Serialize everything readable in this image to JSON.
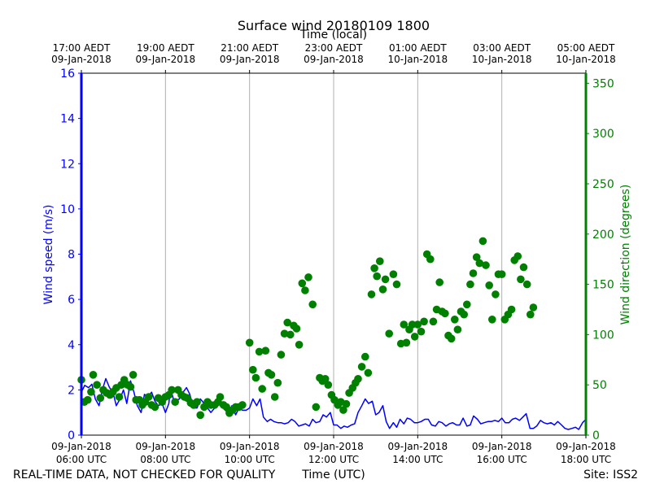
{
  "chart_data": {
    "type": "line+scatter",
    "title": "Surface wind 20180109 1800",
    "top_xlabel": "Time (local)",
    "xlabel": "Time (UTC)",
    "ylabel_left": "Wind speed (m/s)",
    "ylabel_right": "Wind direction (degrees)",
    "footer_left": "REAL-TIME DATA, NOT CHECKED FOR QUALITY",
    "footer_right": "Site: ISS2",
    "x_range_hours_utc": [
      6.0,
      18.0
    ],
    "ylim_left": [
      0,
      16
    ],
    "ylim_right": [
      0,
      360
    ],
    "left_ticks": [
      0,
      2,
      4,
      6,
      8,
      10,
      12,
      14,
      16
    ],
    "right_ticks": [
      0,
      50,
      100,
      150,
      200,
      250,
      300,
      350
    ],
    "bottom_ticks": [
      {
        "h": 6,
        "line1": "09-Jan-2018",
        "line2": "06:00 UTC"
      },
      {
        "h": 8,
        "line1": "09-Jan-2018",
        "line2": "08:00 UTC"
      },
      {
        "h": 10,
        "line1": "09-Jan-2018",
        "line2": "10:00 UTC"
      },
      {
        "h": 12,
        "line1": "09-Jan-2018",
        "line2": "12:00 UTC"
      },
      {
        "h": 14,
        "line1": "09-Jan-2018",
        "line2": "14:00 UTC"
      },
      {
        "h": 16,
        "line1": "09-Jan-2018",
        "line2": "16:00 UTC"
      },
      {
        "h": 18,
        "line1": "09-Jan-2018",
        "line2": "18:00 UTC"
      }
    ],
    "top_ticks": [
      {
        "h": 6,
        "line1": "17:00 AEDT",
        "line2": "09-Jan-2018"
      },
      {
        "h": 8,
        "line1": "19:00 AEDT",
        "line2": "09-Jan-2018"
      },
      {
        "h": 10,
        "line1": "21:00 AEDT",
        "line2": "09-Jan-2018"
      },
      {
        "h": 12,
        "line1": "23:00 AEDT",
        "line2": "09-Jan-2018"
      },
      {
        "h": 14,
        "line1": "01:00 AEDT",
        "line2": "10-Jan-2018"
      },
      {
        "h": 16,
        "line1": "03:00 AEDT",
        "line2": "10-Jan-2018"
      },
      {
        "h": 18,
        "line1": "05:00 AEDT",
        "line2": "10-Jan-2018"
      }
    ],
    "speed_color": "#0000ff",
    "direction_color": "#008000",
    "grid_color": "#b0b0b0",
    "wind_speed": [
      [
        6.0,
        1.9
      ],
      [
        6.08,
        2.2
      ],
      [
        6.17,
        2.1
      ],
      [
        6.25,
        2.25
      ],
      [
        6.33,
        1.6
      ],
      [
        6.42,
        1.3
      ],
      [
        6.5,
        2.0
      ],
      [
        6.58,
        2.5
      ],
      [
        6.67,
        2.1
      ],
      [
        6.75,
        1.9
      ],
      [
        6.83,
        1.3
      ],
      [
        6.92,
        1.6
      ],
      [
        7.0,
        2.0
      ],
      [
        7.08,
        1.4
      ],
      [
        7.17,
        2.4
      ],
      [
        7.25,
        1.9
      ],
      [
        7.33,
        1.3
      ],
      [
        7.42,
        1.0
      ],
      [
        7.5,
        1.8
      ],
      [
        7.58,
        1.7
      ],
      [
        7.67,
        1.9
      ],
      [
        7.75,
        1.5
      ],
      [
        7.83,
        1.3
      ],
      [
        7.92,
        1.4
      ],
      [
        8.0,
        1.0
      ],
      [
        8.08,
        1.4
      ],
      [
        8.12,
        2.1
      ],
      [
        8.2,
        1.5
      ],
      [
        8.33,
        1.6
      ],
      [
        8.42,
        1.9
      ],
      [
        8.5,
        2.1
      ],
      [
        8.58,
        1.8
      ],
      [
        8.67,
        1.2
      ],
      [
        8.75,
        1.2
      ],
      [
        8.83,
        1.6
      ],
      [
        8.92,
        1.4
      ],
      [
        9.0,
        1.2
      ],
      [
        9.08,
        1.0
      ],
      [
        9.17,
        1.2
      ],
      [
        9.25,
        1.3
      ],
      [
        9.33,
        1.4
      ],
      [
        9.42,
        1.1
      ],
      [
        9.5,
        1.0
      ],
      [
        9.58,
        1.3
      ],
      [
        9.67,
        0.9
      ],
      [
        9.75,
        1.2
      ],
      [
        9.83,
        1.1
      ],
      [
        9.92,
        1.1
      ],
      [
        10.0,
        1.2
      ],
      [
        10.08,
        1.6
      ],
      [
        10.17,
        1.3
      ],
      [
        10.25,
        1.6
      ],
      [
        10.33,
        0.8
      ],
      [
        10.42,
        0.6
      ],
      [
        10.5,
        0.7
      ],
      [
        10.58,
        0.6
      ],
      [
        10.67,
        0.55
      ],
      [
        10.75,
        0.55
      ],
      [
        10.83,
        0.5
      ],
      [
        10.92,
        0.55
      ],
      [
        11.0,
        0.7
      ],
      [
        11.08,
        0.6
      ],
      [
        11.17,
        0.4
      ],
      [
        11.25,
        0.45
      ],
      [
        11.33,
        0.5
      ],
      [
        11.42,
        0.4
      ],
      [
        11.5,
        0.7
      ],
      [
        11.58,
        0.55
      ],
      [
        11.67,
        0.6
      ],
      [
        11.75,
        0.9
      ],
      [
        11.83,
        0.8
      ],
      [
        11.92,
        1.0
      ],
      [
        12.0,
        0.45
      ],
      [
        12.08,
        0.45
      ],
      [
        12.17,
        0.3
      ],
      [
        12.25,
        0.4
      ],
      [
        12.33,
        0.35
      ],
      [
        12.42,
        0.45
      ],
      [
        12.5,
        0.5
      ],
      [
        12.58,
        1.0
      ],
      [
        12.67,
        1.3
      ],
      [
        12.75,
        1.6
      ],
      [
        12.83,
        1.4
      ],
      [
        12.92,
        1.5
      ],
      [
        13.0,
        0.9
      ],
      [
        13.08,
        1.0
      ],
      [
        13.17,
        1.3
      ],
      [
        13.25,
        0.6
      ],
      [
        13.33,
        0.3
      ],
      [
        13.42,
        0.55
      ],
      [
        13.5,
        0.35
      ],
      [
        13.58,
        0.7
      ],
      [
        13.67,
        0.5
      ],
      [
        13.75,
        0.75
      ],
      [
        13.83,
        0.7
      ],
      [
        13.92,
        0.55
      ],
      [
        14.0,
        0.55
      ],
      [
        14.08,
        0.6
      ],
      [
        14.17,
        0.7
      ],
      [
        14.25,
        0.7
      ],
      [
        14.33,
        0.45
      ],
      [
        14.42,
        0.4
      ],
      [
        14.5,
        0.6
      ],
      [
        14.58,
        0.55
      ],
      [
        14.67,
        0.4
      ],
      [
        14.75,
        0.5
      ],
      [
        14.83,
        0.55
      ],
      [
        14.92,
        0.45
      ],
      [
        15.0,
        0.45
      ],
      [
        15.08,
        0.75
      ],
      [
        15.17,
        0.4
      ],
      [
        15.25,
        0.45
      ],
      [
        15.33,
        0.85
      ],
      [
        15.42,
        0.7
      ],
      [
        15.5,
        0.5
      ],
      [
        15.58,
        0.55
      ],
      [
        15.67,
        0.6
      ],
      [
        15.75,
        0.6
      ],
      [
        15.83,
        0.65
      ],
      [
        15.92,
        0.6
      ],
      [
        16.0,
        0.75
      ],
      [
        16.08,
        0.55
      ],
      [
        16.17,
        0.55
      ],
      [
        16.25,
        0.7
      ],
      [
        16.33,
        0.75
      ],
      [
        16.42,
        0.65
      ],
      [
        16.5,
        0.8
      ],
      [
        16.58,
        0.95
      ],
      [
        16.67,
        0.3
      ],
      [
        16.75,
        0.3
      ],
      [
        16.83,
        0.4
      ],
      [
        16.92,
        0.65
      ],
      [
        17.0,
        0.55
      ],
      [
        17.08,
        0.5
      ],
      [
        17.17,
        0.55
      ],
      [
        17.25,
        0.45
      ],
      [
        17.33,
        0.6
      ],
      [
        17.42,
        0.45
      ],
      [
        17.5,
        0.3
      ],
      [
        17.58,
        0.25
      ],
      [
        17.67,
        0.3
      ],
      [
        17.75,
        0.35
      ],
      [
        17.83,
        0.25
      ],
      [
        17.92,
        0.55
      ],
      [
        18.0,
        0.7
      ]
    ],
    "wind_direction": [
      [
        6.0,
        55
      ],
      [
        6.07,
        33
      ],
      [
        6.15,
        35
      ],
      [
        6.23,
        43
      ],
      [
        6.28,
        60
      ],
      [
        6.37,
        50
      ],
      [
        6.45,
        37
      ],
      [
        6.52,
        45
      ],
      [
        6.6,
        42
      ],
      [
        6.68,
        40
      ],
      [
        6.75,
        43
      ],
      [
        6.83,
        47
      ],
      [
        6.9,
        38
      ],
      [
        6.95,
        50
      ],
      [
        7.02,
        55
      ],
      [
        7.1,
        50
      ],
      [
        7.17,
        48
      ],
      [
        7.23,
        60
      ],
      [
        7.3,
        35
      ],
      [
        7.38,
        35
      ],
      [
        7.45,
        30
      ],
      [
        7.52,
        33
      ],
      [
        7.6,
        38
      ],
      [
        7.67,
        30
      ],
      [
        7.75,
        28
      ],
      [
        7.83,
        37
      ],
      [
        7.92,
        33
      ],
      [
        8.0,
        38
      ],
      [
        8.08,
        40
      ],
      [
        8.15,
        45
      ],
      [
        8.23,
        33
      ],
      [
        8.3,
        45
      ],
      [
        8.38,
        40
      ],
      [
        8.45,
        38
      ],
      [
        8.52,
        37
      ],
      [
        8.6,
        32
      ],
      [
        8.67,
        30
      ],
      [
        8.75,
        33
      ],
      [
        8.83,
        20
      ],
      [
        8.92,
        28
      ],
      [
        9.0,
        33
      ],
      [
        9.08,
        30
      ],
      [
        9.17,
        30
      ],
      [
        9.25,
        33
      ],
      [
        9.3,
        38
      ],
      [
        9.38,
        30
      ],
      [
        9.45,
        28
      ],
      [
        9.52,
        22
      ],
      [
        9.6,
        25
      ],
      [
        9.67,
        28
      ],
      [
        9.75,
        28
      ],
      [
        9.83,
        30
      ],
      [
        10.0,
        92
      ],
      [
        10.08,
        65
      ],
      [
        10.15,
        57
      ],
      [
        10.23,
        83
      ],
      [
        10.3,
        46
      ],
      [
        10.38,
        84
      ],
      [
        10.45,
        62
      ],
      [
        10.52,
        60
      ],
      [
        10.6,
        38
      ],
      [
        10.67,
        52
      ],
      [
        10.75,
        80
      ],
      [
        10.83,
        101
      ],
      [
        10.9,
        112
      ],
      [
        10.97,
        100
      ],
      [
        11.05,
        109
      ],
      [
        11.12,
        106
      ],
      [
        11.18,
        90
      ],
      [
        11.25,
        151
      ],
      [
        11.32,
        144
      ],
      [
        11.4,
        157
      ],
      [
        11.5,
        130
      ],
      [
        11.58,
        28
      ],
      [
        11.67,
        57
      ],
      [
        11.73,
        54
      ],
      [
        11.8,
        56
      ],
      [
        11.87,
        50
      ],
      [
        11.95,
        40
      ],
      [
        12.02,
        35
      ],
      [
        12.1,
        30
      ],
      [
        12.17,
        33
      ],
      [
        12.23,
        25
      ],
      [
        12.3,
        31
      ],
      [
        12.37,
        42
      ],
      [
        12.45,
        47
      ],
      [
        12.52,
        52
      ],
      [
        12.58,
        56
      ],
      [
        12.67,
        68
      ],
      [
        12.75,
        78
      ],
      [
        12.82,
        62
      ],
      [
        12.9,
        140
      ],
      [
        12.97,
        166
      ],
      [
        13.03,
        158
      ],
      [
        13.1,
        173
      ],
      [
        13.17,
        145
      ],
      [
        13.23,
        155
      ],
      [
        13.32,
        101
      ],
      [
        13.42,
        160
      ],
      [
        13.5,
        150
      ],
      [
        13.6,
        91
      ],
      [
        13.67,
        110
      ],
      [
        13.73,
        92
      ],
      [
        13.8,
        105
      ],
      [
        13.87,
        110
      ],
      [
        13.93,
        98
      ],
      [
        14.0,
        110
      ],
      [
        14.08,
        103
      ],
      [
        14.15,
        113
      ],
      [
        14.22,
        180
      ],
      [
        14.3,
        175
      ],
      [
        14.37,
        113
      ],
      [
        14.45,
        125
      ],
      [
        14.52,
        152
      ],
      [
        14.58,
        123
      ],
      [
        14.65,
        121
      ],
      [
        14.73,
        99
      ],
      [
        14.8,
        96
      ],
      [
        14.88,
        115
      ],
      [
        14.95,
        105
      ],
      [
        15.03,
        123
      ],
      [
        15.1,
        120
      ],
      [
        15.17,
        130
      ],
      [
        15.25,
        150
      ],
      [
        15.32,
        161
      ],
      [
        15.4,
        177
      ],
      [
        15.47,
        171
      ],
      [
        15.55,
        193
      ],
      [
        15.62,
        169
      ],
      [
        15.7,
        149
      ],
      [
        15.77,
        115
      ],
      [
        15.85,
        140
      ],
      [
        15.92,
        160
      ],
      [
        16.0,
        160
      ],
      [
        16.07,
        115
      ],
      [
        16.15,
        120
      ],
      [
        16.23,
        125
      ],
      [
        16.3,
        174
      ],
      [
        16.38,
        178
      ],
      [
        16.45,
        155
      ],
      [
        16.52,
        167
      ],
      [
        16.6,
        150
      ],
      [
        16.68,
        120
      ],
      [
        16.75,
        127
      ]
    ]
  }
}
